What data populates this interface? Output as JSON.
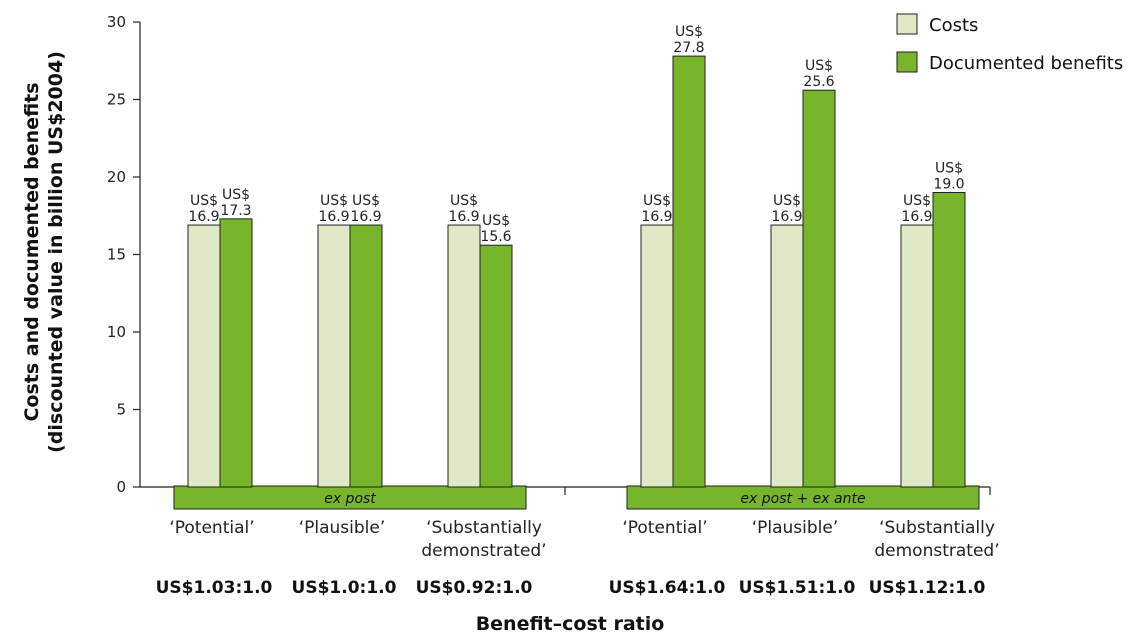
{
  "chart_data": {
    "type": "bar",
    "ylabel_line1": "Costs and documented benefits",
    "ylabel_line2": "(discounted value in billion US$2004)",
    "xlabel": "Benefit–cost ratio",
    "ylim": [
      0,
      30
    ],
    "yticks": [
      "0",
      "5",
      "10",
      "15",
      "20",
      "25",
      "30"
    ],
    "grid": false,
    "legend_position": "top-right",
    "colors": {
      "costs": "#dfe9c6",
      "benefits": "#77b52a",
      "group_band": "#77b52a",
      "outline": "#222222"
    },
    "series": [
      {
        "name": "Costs",
        "values": [
          16.9,
          16.9,
          16.9,
          16.9,
          16.9,
          16.9
        ]
      },
      {
        "name": "Documented benefits",
        "values": [
          17.3,
          16.9,
          15.6,
          27.8,
          25.6,
          19.0
        ]
      }
    ],
    "groups": [
      {
        "label": "ex post",
        "category_indices": [
          0,
          1,
          2
        ]
      },
      {
        "label": "ex post + ex ante",
        "category_indices": [
          3,
          4,
          5
        ]
      }
    ],
    "categories": [
      {
        "line1": "‘Potential’",
        "line2": "",
        "ratio": "US$1.03:1.0",
        "cost_label": [
          "US$",
          "16.9"
        ],
        "benefit_label": [
          "US$",
          "17.3"
        ]
      },
      {
        "line1": "‘Plausible’",
        "line2": "",
        "ratio": "US$1.0:1.0",
        "cost_label": [
          "US$",
          "16.9"
        ],
        "benefit_label": [
          "US$",
          "16.9"
        ]
      },
      {
        "line1": "‘Substantially",
        "line2": "demonstrated’",
        "ratio": "US$0.92:1.0",
        "cost_label": [
          "US$",
          "16.9"
        ],
        "benefit_label": [
          "US$",
          "15.6"
        ]
      },
      {
        "line1": "‘Potential’",
        "line2": "",
        "ratio": "US$1.64:1.0",
        "cost_label": [
          "US$",
          "16.9"
        ],
        "benefit_label": [
          "US$",
          "27.8"
        ]
      },
      {
        "line1": "‘Plausible’",
        "line2": "",
        "ratio": "US$1.51:1.0",
        "cost_label": [
          "US$",
          "16.9"
        ],
        "benefit_label": [
          "US$",
          "25.6"
        ]
      },
      {
        "line1": "‘Substantially",
        "line2": "demonstrated’",
        "ratio": "US$1.12:1.0",
        "cost_label": [
          "US$",
          "16.9"
        ],
        "benefit_label": [
          "US$",
          "19.0"
        ]
      }
    ]
  }
}
